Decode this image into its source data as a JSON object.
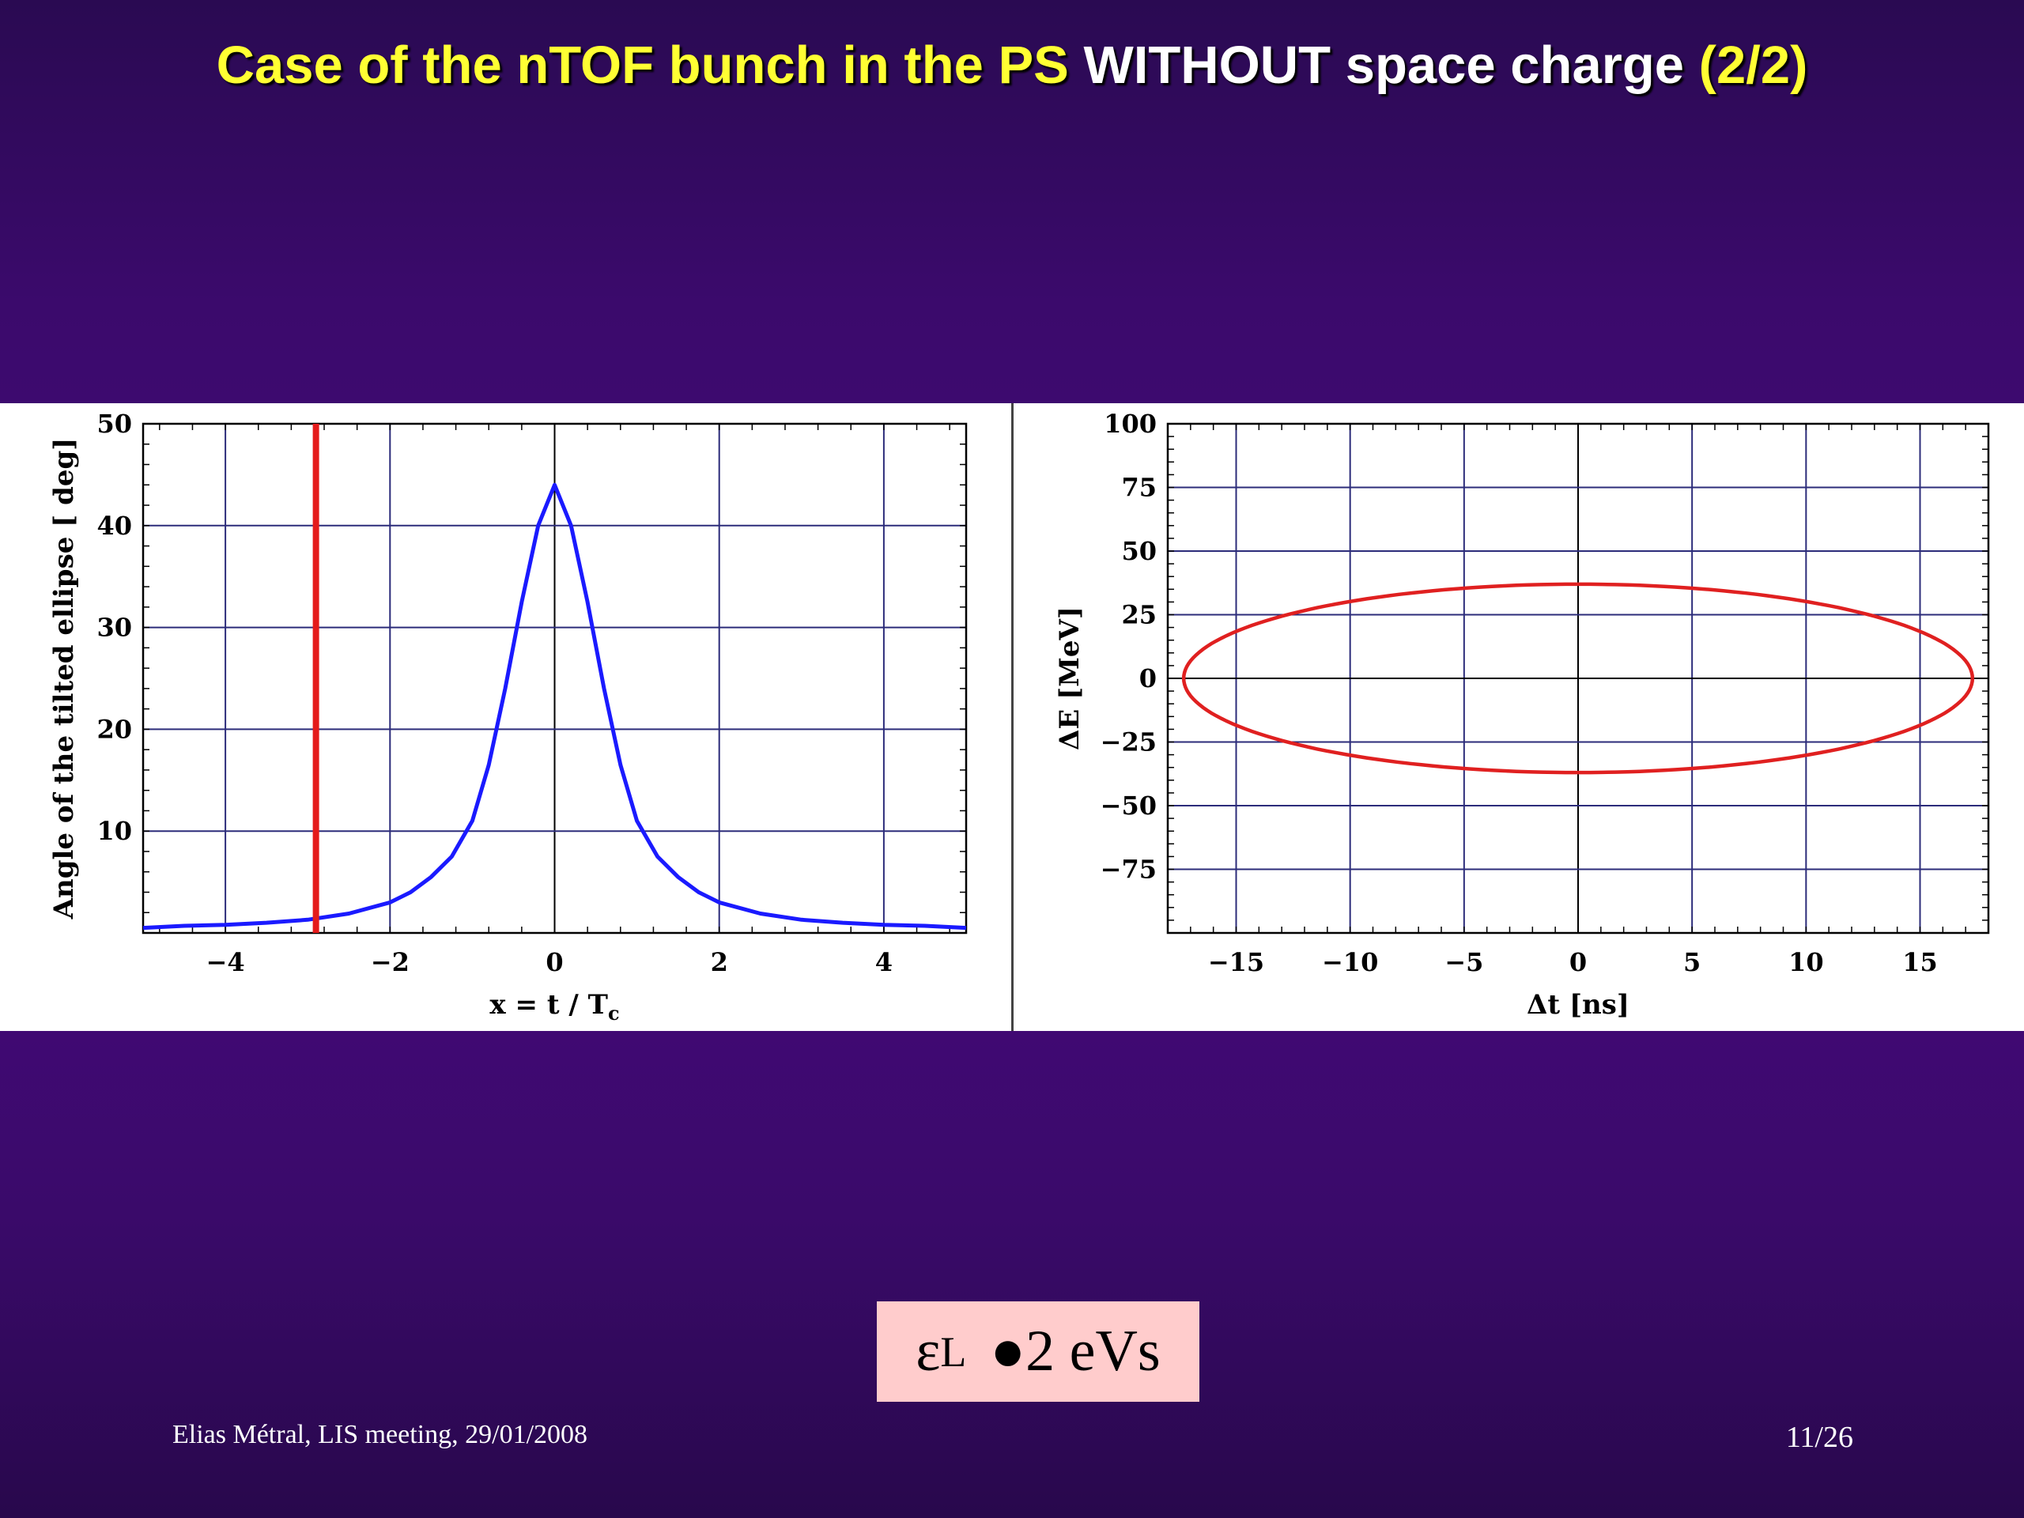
{
  "slide": {
    "title_part1": "Case of the nTOF bunch in the PS",
    "title_part2": "WITHOUT space charge",
    "title_part3": "(2/2)",
    "emittance_symbol": "ε",
    "emittance_sub": "L",
    "emittance_relation": "●",
    "emittance_value": "2 eVs",
    "footer_left": "Elias Métral, LIS meeting, 29/01/2008",
    "page_number": "11/26"
  },
  "colors": {
    "title_highlight": "#ffff33",
    "title_white": "#ffffff",
    "curve_blue": "#1a1aff",
    "marker_red": "#e41b1b",
    "ellipse_red": "#e02020",
    "grid": "#2c2c7a",
    "box_pink": "#ffcccc"
  },
  "chart_data": [
    {
      "type": "line",
      "xlabel": "x = t / T",
      "xlabel_sub": "c",
      "ylabel": "Angle of the tilted  ellipse [ deg]",
      "xlim": [
        -5,
        5
      ],
      "ylim": [
        0,
        50
      ],
      "xticks": [
        -4,
        -2,
        0,
        2,
        4
      ],
      "xtick_labels": [
        "−4",
        "−2",
        "0",
        "2",
        "4"
      ],
      "yticks": [
        10,
        20,
        30,
        40,
        50
      ],
      "ytick_labels": [
        "10",
        "20",
        "30",
        "40",
        "50"
      ],
      "grid": true,
      "series": [
        {
          "x": [
            -5,
            -4.5,
            -4,
            -3.5,
            -3,
            -2.5,
            -2,
            -1.75,
            -1.5,
            -1.25,
            -1,
            -0.8,
            -0.6,
            -0.4,
            -0.2,
            0,
            0.2,
            0.4,
            0.6,
            0.8,
            1,
            1.25,
            1.5,
            1.75,
            2,
            2.5,
            3,
            3.5,
            4,
            4.5,
            5
          ],
          "y": [
            0.5,
            0.7,
            0.8,
            1.0,
            1.3,
            1.9,
            3.0,
            4.0,
            5.5,
            7.5,
            11.0,
            16.5,
            24.0,
            32.5,
            40.0,
            44.0,
            40.0,
            32.5,
            24.0,
            16.5,
            11.0,
            7.5,
            5.5,
            4.0,
            3.0,
            1.9,
            1.3,
            1.0,
            0.8,
            0.7,
            0.5
          ]
        }
      ],
      "vline_x": -2.9
    },
    {
      "type": "line",
      "xlabel": "Δt [ns]",
      "ylabel": "ΔE [MeV]",
      "xlim": [
        -18,
        18
      ],
      "ylim": [
        -100,
        100
      ],
      "xticks": [
        -15,
        -10,
        -5,
        0,
        5,
        10,
        15
      ],
      "xtick_labels": [
        "−15",
        "−10",
        "−5",
        "0",
        "5",
        "10",
        "15"
      ],
      "yticks": [
        -75,
        -50,
        -25,
        0,
        25,
        50,
        75,
        100
      ],
      "ytick_labels": [
        "−75",
        "−50",
        "−25",
        "0",
        "25",
        "50",
        "75",
        "100"
      ],
      "grid": true,
      "ellipse": {
        "center_x": 0,
        "center_y": 0,
        "half_width_ns": 17.3,
        "half_height_mev": 37
      }
    }
  ]
}
